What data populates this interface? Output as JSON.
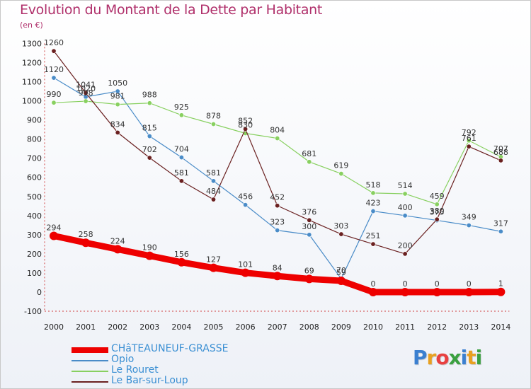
{
  "header": {
    "title": "Evolution du Montant de la Dette par Habitant",
    "unit": "(en €)"
  },
  "logo": {
    "text": "Proxiti",
    "colors": [
      "#3a7fd0",
      "#e8a020",
      "#e84040",
      "#3aa040",
      "#3a7fd0",
      "#e8a020",
      "#3aa040"
    ]
  },
  "chart_data": {
    "type": "line",
    "title": "Evolution du Montant de la Dette par Habitant",
    "ylabel": "(en €)",
    "xlabel": "",
    "ylim": [
      -100,
      1300
    ],
    "grid": false,
    "legend_position": "bottom-left",
    "x": [
      2000,
      2001,
      2002,
      2003,
      2004,
      2005,
      2006,
      2007,
      2008,
      2009,
      2010,
      2011,
      2012,
      2013,
      2014
    ],
    "y_ticks": [
      -100,
      0,
      100,
      200,
      300,
      400,
      500,
      600,
      700,
      800,
      900,
      1000,
      1100,
      1200,
      1300
    ],
    "series": [
      {
        "name": "CHâTEAUNEUF-GRASSE",
        "color": "#ee0000",
        "thick": true,
        "values": [
          294,
          258,
          224,
          190,
          156,
          127,
          101,
          84,
          69,
          59,
          0,
          0,
          0,
          0,
          1
        ]
      },
      {
        "name": "Opio",
        "color": "#4a8cc8",
        "thick": false,
        "values": [
          1120,
          1020,
          1050,
          815,
          704,
          581,
          456,
          323,
          300,
          70,
          423,
          400,
          375,
          349,
          317
        ]
      },
      {
        "name": "Le Rouret",
        "color": "#88d060",
        "thick": false,
        "values": [
          990,
          998,
          981,
          988,
          925,
          878,
          830,
          804,
          681,
          619,
          518,
          514,
          459,
          792,
          707
        ]
      },
      {
        "name": "Le Bar-sur-Loup",
        "color": "#6a2020",
        "thick": false,
        "values": [
          1260,
          1041,
          834,
          702,
          581,
          484,
          852,
          452,
          376,
          303,
          251,
          200,
          380,
          761,
          688
        ]
      }
    ],
    "data_labels": [
      [
        "294",
        "258",
        "224",
        "190",
        "156",
        "127",
        "101",
        "84",
        "69",
        "59",
        "0",
        "0",
        "0",
        "0",
        "1"
      ],
      [
        "1120",
        "1020",
        "1050",
        "815",
        "704",
        "581",
        "456",
        "323",
        "300",
        "70",
        "423",
        "400",
        "375",
        "349",
        "317"
      ],
      [
        "990",
        "998",
        "981",
        "988",
        "925",
        "878",
        "830",
        "804",
        "681",
        "619",
        "518",
        "514",
        "459",
        "792",
        "707"
      ],
      [
        "1260",
        "1041",
        "834",
        "702",
        "581",
        "484",
        "852",
        "452",
        "376",
        "303",
        "251",
        "200",
        "380",
        "761",
        "688"
      ]
    ]
  }
}
